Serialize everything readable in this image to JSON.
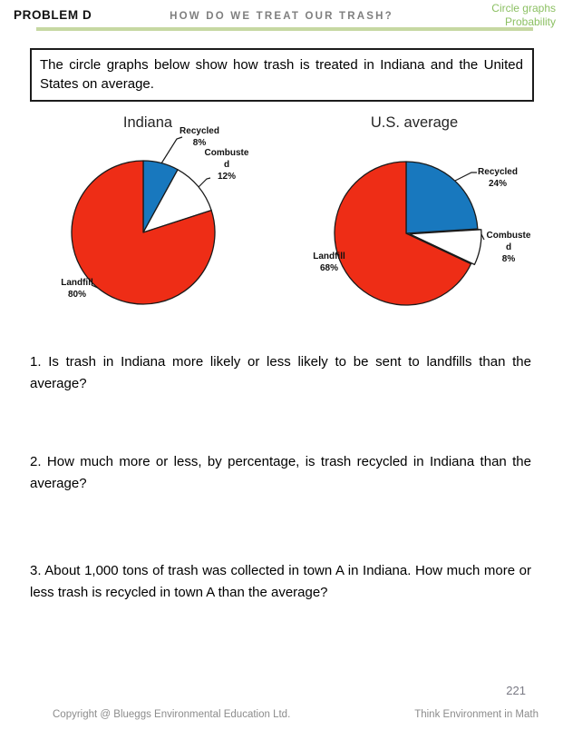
{
  "header": {
    "problem_label": "PROBLEM D",
    "title": "HOW DO WE TREAT OUR TRASH?",
    "topic_line1": "Circle graphs",
    "topic_line2": "Probability",
    "topic_color": "#8cc063",
    "rule_color": "#c6d8a2"
  },
  "intro_box": {
    "text": "The circle graphs below show how trash is treated in Indiana and the United States on average."
  },
  "chart_data": [
    {
      "type": "pie",
      "title": "Indiana",
      "start_angle": 0,
      "legend": "none",
      "data_labels": "outside-with-leader-lines",
      "slices": [
        {
          "label": "Recycled",
          "value": 8,
          "percent_label": "8%",
          "color": "#1878be",
          "label_lines": [
            "Recycled"
          ]
        },
        {
          "label": "Combusted",
          "value": 12,
          "percent_label": "12%",
          "color": "#ffffff",
          "label_lines": [
            "Combuste",
            "d"
          ]
        },
        {
          "label": "Landfill",
          "value": 80,
          "percent_label": "80%",
          "color": "#ee2d16",
          "label_lines": [
            "Landfill"
          ]
        }
      ]
    },
    {
      "type": "pie",
      "title": "U.S. average",
      "start_angle": 0,
      "legend": "none",
      "data_labels": "outside-with-leader-lines",
      "slices": [
        {
          "label": "Recycled",
          "value": 24,
          "percent_label": "24%",
          "color": "#1878be",
          "label_lines": [
            "Recycled"
          ]
        },
        {
          "label": "Combusted",
          "value": 8,
          "percent_label": "8%",
          "color": "#ffffff",
          "label_lines": [
            "Combuste",
            "d"
          ],
          "exploded": true
        },
        {
          "label": "Landfill",
          "value": 68,
          "percent_label": "68%",
          "color": "#ee2d16",
          "label_lines": [
            "Landfill"
          ]
        }
      ]
    }
  ],
  "questions": [
    {
      "text": "1. Is trash in Indiana more likely or less likely to be sent to landfills than the average?"
    },
    {
      "text": "2. How much more or less, by percentage, is trash recycled in Indiana than the average?"
    },
    {
      "text": "3. About 1,000 tons of trash was collected in town A in Indiana. How much more or less trash is recycled in town A than the average?"
    }
  ],
  "footer": {
    "page_number": "221",
    "copyright": "Copyright @ Blueggs Environmental Education Ltd.",
    "tagline": "Think Environment in Math"
  }
}
